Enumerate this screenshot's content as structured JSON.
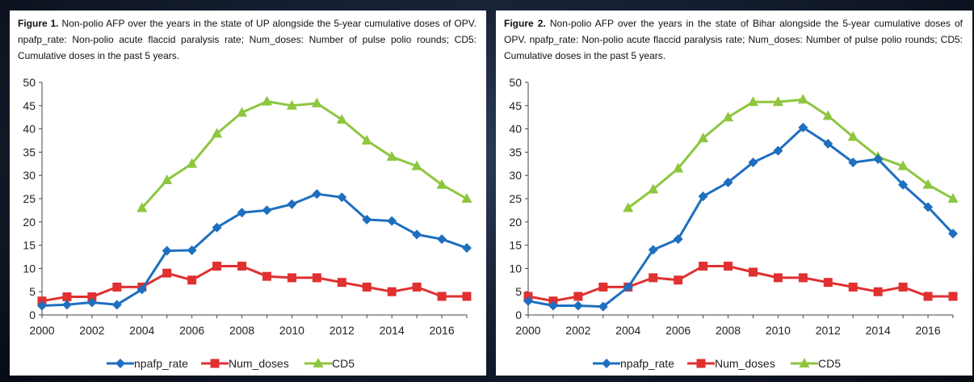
{
  "chart_data": [
    {
      "type": "line",
      "title_prefix": "Figure 1.",
      "title": "Non-polio AFP over the years in the state of UP alongside the 5-year cumulative doses of OPV. npafp_rate: Non-polio acute flaccid paralysis rate; Num_doses: Number of pulse polio rounds; CD5: Cumulative doses in the past 5 years.",
      "x": [
        2000,
        2001,
        2002,
        2003,
        2004,
        2005,
        2006,
        2007,
        2008,
        2009,
        2010,
        2011,
        2012,
        2013,
        2014,
        2015,
        2016,
        2017
      ],
      "xlim": [
        2000,
        2017
      ],
      "ylim": [
        0,
        50
      ],
      "xticks": [
        "2000",
        "2002",
        "2004",
        "2006",
        "2008",
        "2010",
        "2012",
        "2014",
        "2016"
      ],
      "yticks": [
        "0",
        "5",
        "10",
        "15",
        "20",
        "25",
        "30",
        "35",
        "40",
        "45",
        "50"
      ],
      "legend_position": "bottom",
      "series": [
        {
          "name": "npafp_rate",
          "color": "#1f6fbf",
          "marker": "diamond",
          "values": [
            2,
            2.2,
            2.7,
            2.2,
            5.5,
            13.8,
            13.9,
            18.8,
            22,
            22.5,
            23.8,
            26,
            25.3,
            20.5,
            20.2,
            17.3,
            16.3,
            14.4
          ]
        },
        {
          "name": "Num_doses",
          "color": "#e03030",
          "marker": "square",
          "values": [
            3,
            3.9,
            3.9,
            6,
            6,
            9,
            7.5,
            10.5,
            10.5,
            8.3,
            8,
            8,
            7,
            6,
            5,
            6,
            4,
            4
          ]
        },
        {
          "name": "CD5",
          "color": "#8dc63f",
          "marker": "triangle",
          "values": [
            null,
            null,
            null,
            null,
            23,
            29,
            32.5,
            39,
            43.5,
            45.9,
            45,
            45.5,
            42,
            37.5,
            34,
            32,
            28,
            25
          ]
        }
      ]
    },
    {
      "type": "line",
      "title_prefix": "Figure 2.",
      "title": "Non-polio AFP over the years in the state of Bihar alongside the 5-year cumulative doses of OPV. npafp_rate: Non-polio acute flaccid paralysis rate; Num_doses: Number of pulse polio rounds; CD5: Cumulative doses in the past 5 years.",
      "x": [
        2000,
        2001,
        2002,
        2003,
        2004,
        2005,
        2006,
        2007,
        2008,
        2009,
        2010,
        2011,
        2012,
        2013,
        2014,
        2015,
        2016,
        2017
      ],
      "xlim": [
        2000,
        2017
      ],
      "ylim": [
        0,
        50
      ],
      "xticks": [
        "2000",
        "2002",
        "2004",
        "2006",
        "2008",
        "2010",
        "2012",
        "2014",
        "2016"
      ],
      "yticks": [
        "0",
        "5",
        "10",
        "15",
        "20",
        "25",
        "30",
        "35",
        "40",
        "45",
        "50"
      ],
      "legend_position": "bottom",
      "series": [
        {
          "name": "npafp_rate",
          "color": "#1f6fbf",
          "marker": "diamond",
          "values": [
            3,
            2,
            2,
            1.8,
            6,
            14,
            16.3,
            25.5,
            28.5,
            32.8,
            35.3,
            40.3,
            36.8,
            32.8,
            33.5,
            28,
            23.2,
            17.5
          ]
        },
        {
          "name": "Num_doses",
          "color": "#e03030",
          "marker": "square",
          "values": [
            4,
            3,
            4,
            6,
            6,
            8,
            7.5,
            10.5,
            10.5,
            9.2,
            8,
            8,
            7,
            6,
            5,
            6,
            4,
            4
          ]
        },
        {
          "name": "CD5",
          "color": "#8dc63f",
          "marker": "triangle",
          "values": [
            null,
            null,
            null,
            null,
            23,
            27,
            31.5,
            38,
            42.5,
            45.8,
            45.8,
            46.3,
            42.8,
            38.3,
            34,
            32,
            28,
            25
          ]
        }
      ]
    }
  ]
}
